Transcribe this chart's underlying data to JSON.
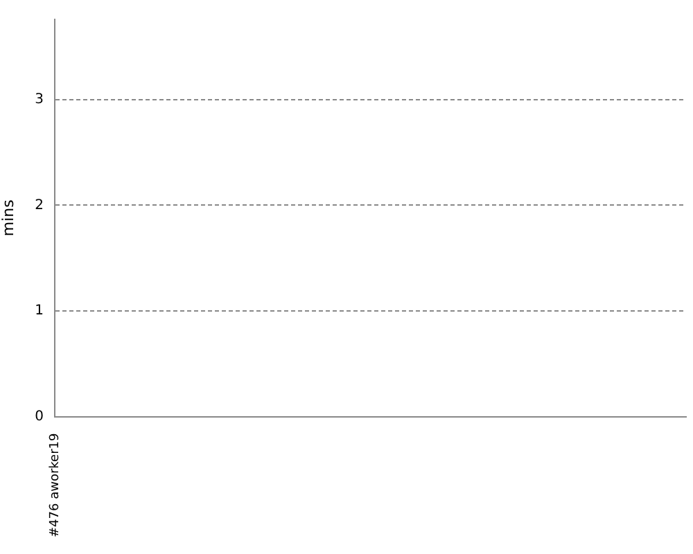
{
  "chart_data": {
    "type": "line",
    "ylabel": "mins",
    "categories": [
      "#476 aworker19"
    ],
    "values": [
      null
    ],
    "ylim": [
      0,
      3.76
    ],
    "yticks": [
      0,
      1,
      2,
      3
    ],
    "grid": "y"
  }
}
